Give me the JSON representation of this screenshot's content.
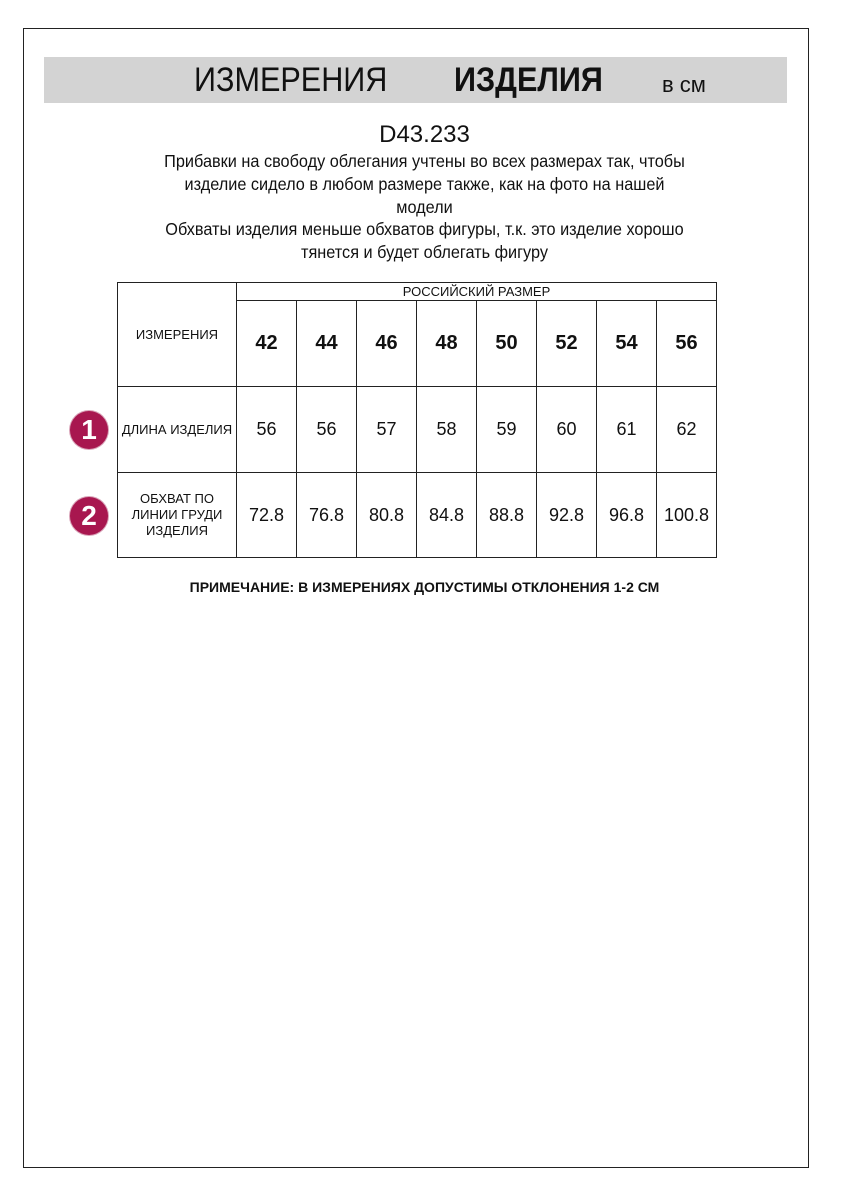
{
  "header": {
    "title_regular": "ИЗМЕРЕНИЯ",
    "title_bold": "ИЗДЕЛИЯ",
    "unit": "в см"
  },
  "article": "D43.233",
  "paragraphs": [
    [
      "Прибавки на свободу облегания учтены во всех размерах так, чтобы",
      "изделие сидело в любом размере также, как на фото на нашей",
      "модели"
    ],
    [
      "Обхваты изделия меньше обхватов фигуры, т.к. это изделие хорошо",
      "тянется и будет облегать фигуру"
    ]
  ],
  "table": {
    "corner_label": "ИЗМЕРЕНИЯ",
    "group_label": "РОССИЙСКИЙ РАЗМЕР",
    "sizes": [
      "42",
      "44",
      "46",
      "48",
      "50",
      "52",
      "54",
      "56"
    ],
    "rows": [
      {
        "badge": "1",
        "label": "ДЛИНА ИЗДЕЛИЯ",
        "values": [
          "56",
          "56",
          "57",
          "58",
          "59",
          "60",
          "61",
          "62"
        ]
      },
      {
        "badge": "2",
        "label": "ОБХВАТ ПО ЛИНИИ ГРУДИ ИЗДЕЛИЯ",
        "values": [
          "72.8",
          "76.8",
          "80.8",
          "84.8",
          "88.8",
          "92.8",
          "96.8",
          "100.8"
        ]
      }
    ]
  },
  "note": "ПРИМЕЧАНИЕ: В ИЗМЕРЕНИЯХ ДОПУСТИМЫ ОТКЛОНЕНИЯ 1-2 СМ",
  "colors": {
    "badge": "#a8174f",
    "banner": "#d3d3d3"
  }
}
